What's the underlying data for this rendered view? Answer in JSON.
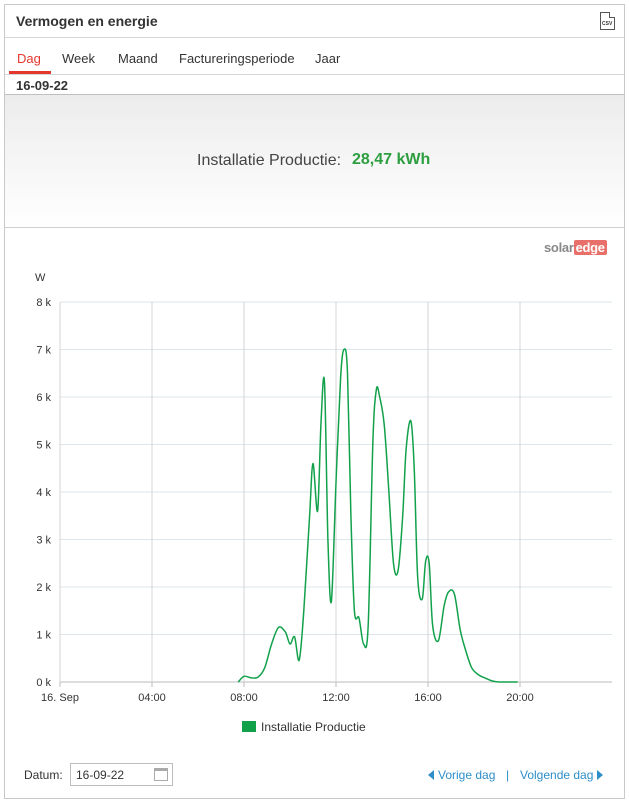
{
  "header": {
    "title": "Vermogen en energie",
    "csv_icon": "csv-file-icon",
    "csv_label": "CSV"
  },
  "tabs": [
    {
      "label": "Dag",
      "active": true
    },
    {
      "label": "Week",
      "active": false
    },
    {
      "label": "Maand",
      "active": false
    },
    {
      "label": "Factureringsperiode",
      "active": false
    },
    {
      "label": "Jaar",
      "active": false
    }
  ],
  "date_label": "16-09-22",
  "summary": {
    "label": "Installatie Productie:",
    "value": "28,47 kWh",
    "value_color": "#2d9e3f"
  },
  "logo": {
    "part1": "solar",
    "part2": "edge"
  },
  "chart_data": {
    "type": "line",
    "ylabel": "W",
    "ylim": [
      0,
      8000
    ],
    "yticks": [
      0,
      1000,
      2000,
      3000,
      4000,
      5000,
      6000,
      7000,
      8000
    ],
    "ytick_labels": [
      "0 k",
      "1 k",
      "2 k",
      "3 k",
      "4 k",
      "5 k",
      "6 k",
      "7 k",
      "8 k"
    ],
    "xlim_hours": [
      0,
      24
    ],
    "xtick_hours": [
      0,
      4,
      8,
      12,
      16,
      20
    ],
    "xtick_labels": [
      "16. Sep",
      "04:00",
      "08:00",
      "12:00",
      "16:00",
      "20:00"
    ],
    "grid": true,
    "legend_position": "bottom",
    "series": [
      {
        "name": "Installatie Productie",
        "color": "#12a14b",
        "x_hours": [
          7.75,
          8.0,
          8.3,
          8.6,
          8.9,
          9.2,
          9.5,
          9.8,
          10.0,
          10.2,
          10.4,
          10.6,
          10.85,
          11.0,
          11.2,
          11.35,
          11.5,
          11.65,
          11.8,
          12.0,
          12.2,
          12.35,
          12.5,
          12.65,
          12.8,
          13.0,
          13.2,
          13.4,
          13.6,
          13.75,
          13.9,
          14.1,
          14.3,
          14.5,
          14.7,
          14.9,
          15.05,
          15.25,
          15.4,
          15.55,
          15.75,
          15.9,
          16.05,
          16.2,
          16.45,
          16.7,
          16.9,
          17.15,
          17.4,
          17.65,
          17.9,
          18.2,
          18.5,
          18.8,
          19.1,
          19.4,
          19.6,
          19.9
        ],
        "values": [
          0,
          120,
          90,
          100,
          300,
          800,
          1150,
          1050,
          800,
          950,
          460,
          1500,
          3500,
          4600,
          3600,
          5500,
          6300,
          3000,
          1700,
          4200,
          6400,
          7000,
          6500,
          3500,
          1500,
          1350,
          800,
          1200,
          5000,
          6150,
          6000,
          5400,
          4000,
          2500,
          2350,
          3500,
          4900,
          5500,
          4500,
          2200,
          1750,
          2550,
          2500,
          1200,
          870,
          1600,
          1900,
          1850,
          1100,
          650,
          300,
          150,
          80,
          20,
          0,
          0,
          0,
          0
        ]
      }
    ]
  },
  "footer": {
    "date_label": "Datum:",
    "date_value": "16-09-22",
    "calendar_icon": "calendar-icon",
    "prev_label": "Vorige dag",
    "next_label": "Volgende dag",
    "separator": "|"
  }
}
